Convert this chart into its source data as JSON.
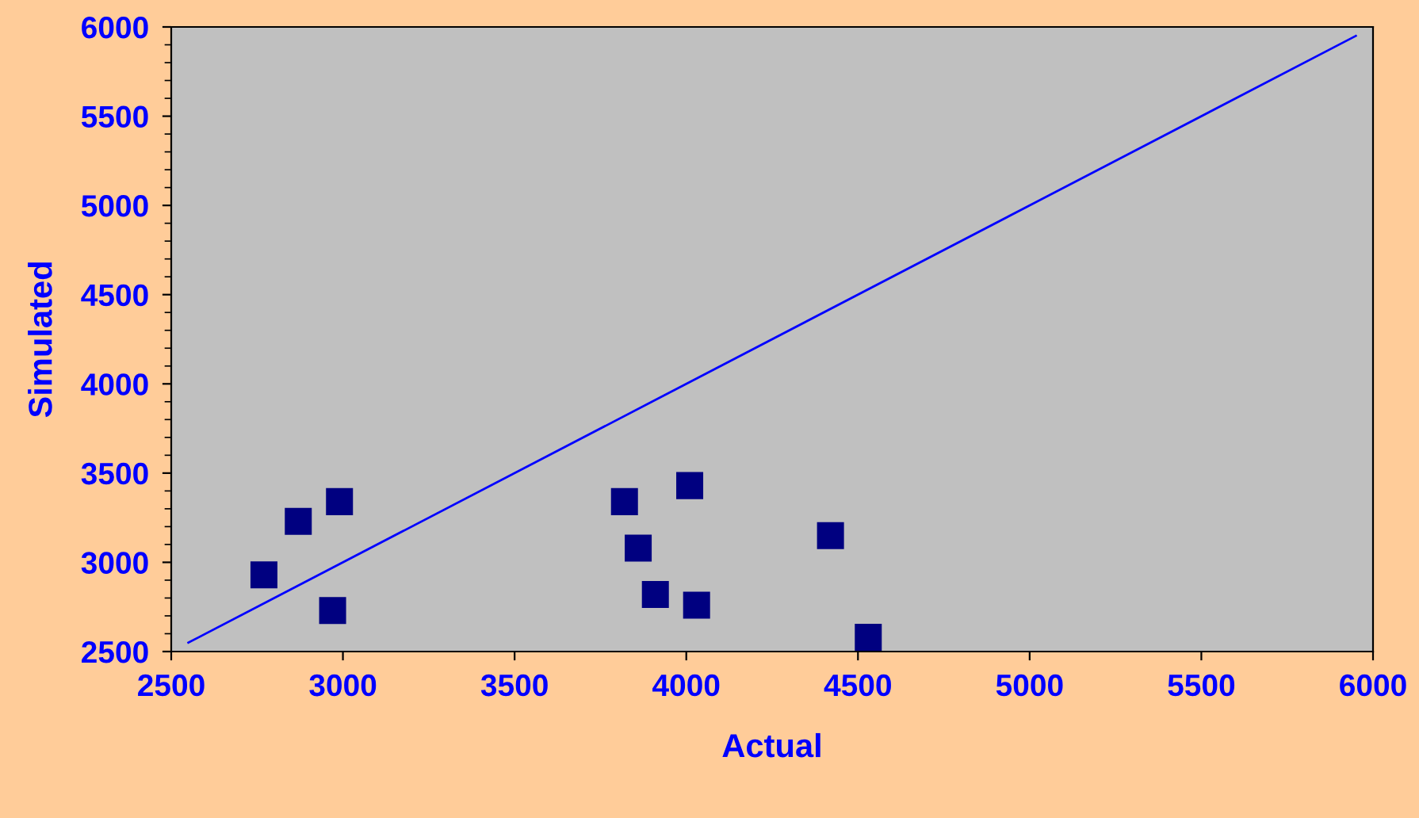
{
  "chart_data": {
    "type": "scatter",
    "xlabel": "Actual",
    "ylabel": "Simulated",
    "xlim": [
      2500,
      6000
    ],
    "xticks": [
      2500,
      3000,
      3500,
      4000,
      4500,
      5000,
      5500,
      6000
    ],
    "ylim": [
      2500,
      6000
    ],
    "yticks": [
      2500,
      3000,
      3500,
      4000,
      4500,
      5000,
      5500,
      6000
    ],
    "grid": false,
    "legend": false,
    "series": [
      {
        "color": "#000080",
        "marker": "square",
        "x": [
          2770,
          2870,
          2990,
          2970,
          3820,
          3860,
          3910,
          4010,
          4030,
          4420,
          4530
        ],
        "values": [
          2930,
          3230,
          3340,
          2730,
          3340,
          3080,
          2820,
          3430,
          2760,
          3150,
          2580
        ]
      },
      {
        "type": "line",
        "color": "#0000ff",
        "x": [
          2550,
          5950
        ],
        "values": [
          2550,
          5950
        ]
      }
    ]
  }
}
